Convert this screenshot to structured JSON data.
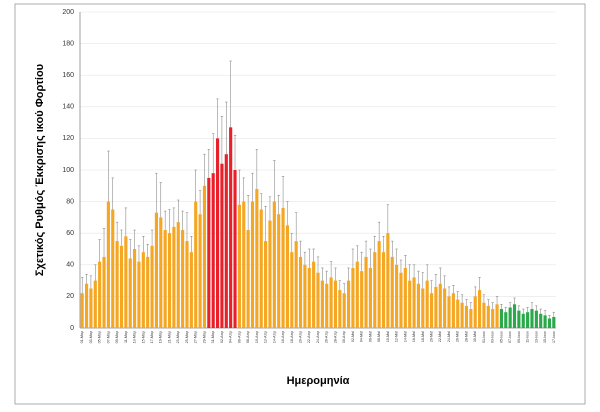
{
  "chart_data": {
    "type": "bar",
    "y_label": "Σχετικός Ρυθμός Έκκρισης ικού Φορτίου",
    "x_label": "Ημερομηνία",
    "categories": [
      "01-Μαρ",
      null,
      "03-Μαρ",
      null,
      "05-Μαρ",
      null,
      "07-Μαρ",
      null,
      "09-Μαρ",
      null,
      "11-Μαρ",
      null,
      "13-Μαρ",
      null,
      "15-Μαρ",
      null,
      "17-Μαρ",
      null,
      "19-Μαρ",
      null,
      "21-Μαρ",
      null,
      "23-Μαρ",
      null,
      "25-Μαρ",
      null,
      "27-Μαρ",
      null,
      "29-Μαρ",
      null,
      "31-Μαρ",
      null,
      "02-Απρ",
      null,
      "04-Απρ",
      null,
      "06-Απρ",
      null,
      "08-Απρ",
      null,
      "10-Απρ",
      null,
      "12-Απρ",
      null,
      "14-Απρ",
      null,
      "16-Απρ",
      null,
      "18-Απρ",
      null,
      "20-Απρ",
      null,
      "22-Απρ",
      null,
      "24-Απρ",
      null,
      "26-Απρ",
      null,
      "28-Απρ",
      null,
      "30-Απρ",
      null,
      "02-Μαϊ",
      null,
      "04-Μαϊ",
      null,
      "06-Μαϊ",
      null,
      "08-Μαϊ",
      null,
      "10-Μαϊ",
      null,
      "12-Μαϊ",
      null,
      "14-Μαϊ",
      null,
      "16-Μαϊ",
      null,
      "18-Μαϊ",
      null,
      "20-Μαϊ",
      null,
      "22-Μαϊ",
      null,
      "24-Μαϊ",
      null,
      "26-Μαϊ",
      null,
      "28-Μαϊ",
      null,
      "30-Μαϊ",
      null,
      "01-Ιουν",
      null,
      "03-Ιουν",
      null,
      "05-Ιουν",
      null,
      "07-Ιουν",
      null,
      "09-Ιουν",
      null,
      "11-Ιουν",
      null,
      "13-Ιουν",
      null,
      "15-Ιουν",
      null,
      "17-Ιουν"
    ],
    "values": [
      22,
      28,
      25,
      30,
      42,
      45,
      80,
      75,
      55,
      52,
      58,
      44,
      50,
      42,
      48,
      45,
      52,
      73,
      70,
      62,
      60,
      64,
      67,
      62,
      55,
      48,
      80,
      72,
      90,
      95,
      98,
      120,
      104,
      110,
      127,
      100,
      78,
      80,
      62,
      80,
      88,
      75,
      55,
      68,
      80,
      72,
      76,
      65,
      48,
      55,
      45,
      40,
      38,
      42,
      35,
      30,
      28,
      32,
      30,
      24,
      22,
      30,
      38,
      42,
      36,
      45,
      38,
      48,
      55,
      48,
      60,
      45,
      40,
      35,
      38,
      30,
      32,
      28,
      25,
      30,
      22,
      26,
      28,
      25,
      20,
      22,
      18,
      16,
      14,
      12,
      20,
      24,
      16,
      14,
      12,
      15,
      12,
      10,
      13,
      15,
      11,
      9,
      10,
      12,
      11,
      9,
      8,
      6,
      7
    ],
    "errors": [
      10,
      6,
      8,
      10,
      14,
      18,
      32,
      20,
      12,
      10,
      18,
      12,
      12,
      10,
      10,
      8,
      10,
      25,
      22,
      12,
      15,
      12,
      14,
      12,
      18,
      10,
      20,
      15,
      20,
      18,
      25,
      25,
      30,
      33,
      42,
      22,
      22,
      15,
      22,
      18,
      25,
      10,
      22,
      15,
      26,
      12,
      20,
      15,
      12,
      18,
      10,
      8,
      12,
      8,
      10,
      8,
      8,
      10,
      8,
      6,
      6,
      8,
      12,
      10,
      12,
      10,
      12,
      10,
      12,
      10,
      18,
      10,
      10,
      8,
      8,
      10,
      8,
      8,
      10,
      10,
      8,
      8,
      10,
      8,
      6,
      5,
      5,
      5,
      4,
      4,
      6,
      8,
      5,
      4,
      4,
      5,
      3,
      3,
      3,
      4,
      3,
      3,
      3,
      4,
      3,
      3,
      3,
      2,
      3
    ],
    "colors": [
      "#f5a623",
      "#f5a623",
      "#f5a623",
      "#f5a623",
      "#f5a623",
      "#f5a623",
      "#f5a623",
      "#f5a623",
      "#f5a623",
      "#f5a623",
      "#f5a623",
      "#f5a623",
      "#f5a623",
      "#f5a623",
      "#f5a623",
      "#f5a623",
      "#f5a623",
      "#f5a623",
      "#f5a623",
      "#f5a623",
      "#f5a623",
      "#f5a623",
      "#f5a623",
      "#f5a623",
      "#f5a623",
      "#f5a623",
      "#f5a623",
      "#f5a623",
      "#f5a623",
      "#e8202a",
      "#e8202a",
      "#e8202a",
      "#e8202a",
      "#e8202a",
      "#e8202a",
      "#e8202a",
      "#f5a623",
      "#f5a623",
      "#f5a623",
      "#f5a623",
      "#f5a623",
      "#f5a623",
      "#f5a623",
      "#f5a623",
      "#f5a623",
      "#f5a623",
      "#f5a623",
      "#f5a623",
      "#f5a623",
      "#f5a623",
      "#f5a623",
      "#f5a623",
      "#f5a623",
      "#f5a623",
      "#f5a623",
      "#f5a623",
      "#f5a623",
      "#f5a623",
      "#f5a623",
      "#f5a623",
      "#f5a623",
      "#f5a623",
      "#f5a623",
      "#f5a623",
      "#f5a623",
      "#f5a623",
      "#f5a623",
      "#f5a623",
      "#f5a623",
      "#f5a623",
      "#f5a623",
      "#f5a623",
      "#f5a623",
      "#f5a623",
      "#f5a623",
      "#f5a623",
      "#f5a623",
      "#f5a623",
      "#f5a623",
      "#f5a623",
      "#f5a623",
      "#f5a623",
      "#f5a623",
      "#f5a623",
      "#f5a623",
      "#f5a623",
      "#f5a623",
      "#f5a623",
      "#f5a623",
      "#f5a623",
      "#f5a623",
      "#f5a623",
      "#f5a623",
      "#f5a623",
      "#f5a623",
      "#f5a623",
      "#2aa84a",
      "#2aa84a",
      "#2aa84a",
      "#2aa84a",
      "#2aa84a",
      "#2aa84a",
      "#2aa84a",
      "#2aa84a",
      "#2aa84a",
      "#2aa84a",
      "#2aa84a",
      "#2aa84a",
      "#2aa84a"
    ],
    "ylim": [
      0,
      200
    ],
    "yticks": [
      0,
      20,
      40,
      60,
      80,
      100,
      120,
      140,
      160,
      180,
      200
    ],
    "grid": true
  }
}
